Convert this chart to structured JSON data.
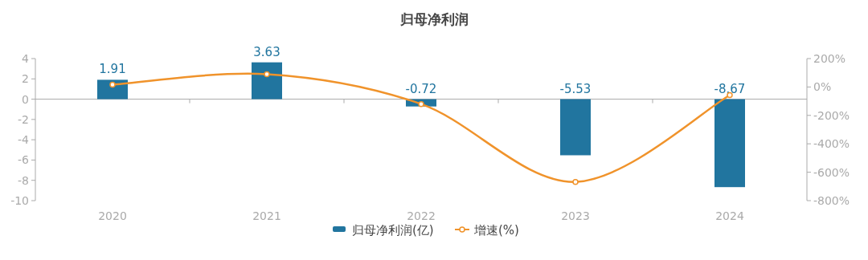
{
  "chart_data": {
    "type": "bar",
    "title": "归母净利润",
    "categories": [
      "2020",
      "2021",
      "2022",
      "2023",
      "2024"
    ],
    "series": [
      {
        "name": "归母净利润(亿)",
        "color": "#21759f",
        "values": [
          1.91,
          3.63,
          -0.72,
          -5.53,
          -8.67
        ],
        "value_labels": [
          "1.91",
          "3.63",
          "-0.72",
          "-5.53",
          "-8.67"
        ]
      },
      {
        "name": "增速(%)",
        "type": "line",
        "axis": "y2",
        "color": "#f0932b",
        "values": [
          16,
          90,
          -120,
          -668,
          -57
        ],
        "marker": "circle"
      }
    ],
    "ylim": [
      -10,
      4
    ],
    "yticks": [
      -10,
      -8,
      -6,
      -4,
      -2,
      0,
      2,
      4
    ],
    "y2lim": [
      -800,
      200
    ],
    "y2ticks": [
      {
        "value": -800,
        "label": "-800%"
      },
      {
        "value": -600,
        "label": "-600%"
      },
      {
        "value": -400,
        "label": "-400%"
      },
      {
        "value": -200,
        "label": "-200%"
      },
      {
        "value": 0,
        "label": "0%"
      },
      {
        "value": 200,
        "label": "200%"
      }
    ],
    "legend": "bottom"
  }
}
